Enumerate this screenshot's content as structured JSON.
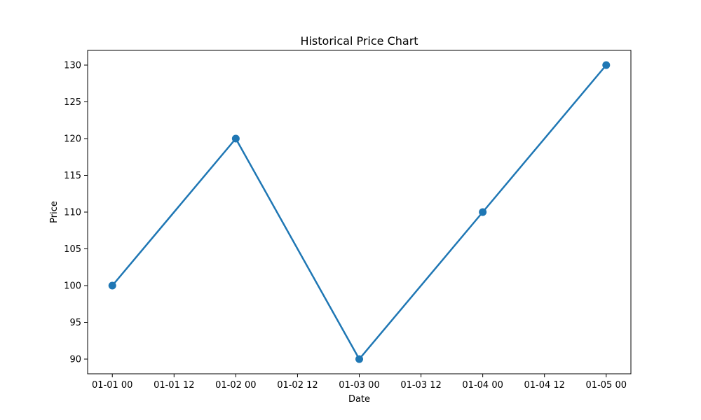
{
  "chart_data": {
    "type": "line",
    "title": "Historical Price Chart",
    "xlabel": "Date",
    "ylabel": "Price",
    "x": [
      "2023-01-01 00:00",
      "2023-01-02 00:00",
      "2023-01-03 00:00",
      "2023-01-04 00:00",
      "2023-01-05 00:00"
    ],
    "series": [
      {
        "values": [
          100,
          120,
          90,
          110,
          130
        ],
        "color": "#1f77b4",
        "marker": "circle"
      }
    ],
    "x_ticks": [
      "01-01 00",
      "01-01 12",
      "01-02 00",
      "01-02 12",
      "01-03 00",
      "01-03 12",
      "01-04 00",
      "01-04 12",
      "01-05 00"
    ],
    "y_ticks": [
      90,
      95,
      100,
      105,
      110,
      115,
      120,
      125,
      130
    ],
    "xlim": [
      "2022-12-31 19:12",
      "2023-01-05 04:48"
    ],
    "ylim": [
      88,
      132
    ],
    "grid": false,
    "legend": "none"
  }
}
